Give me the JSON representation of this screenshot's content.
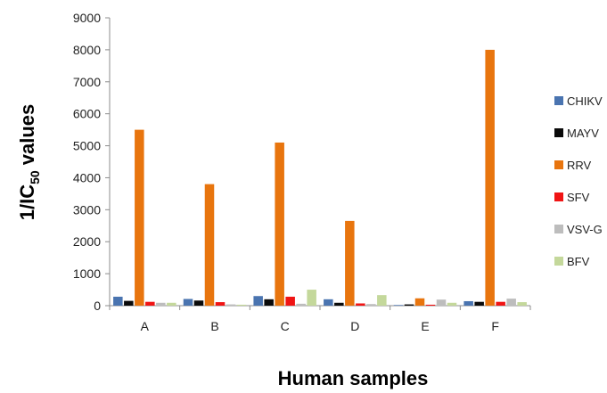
{
  "chart_data": {
    "type": "bar",
    "categories": [
      "A",
      "B",
      "C",
      "D",
      "E",
      "F"
    ],
    "series": [
      {
        "name": "CHIKV",
        "color": "#4a74b0",
        "values": [
          280,
          210,
          300,
          200,
          20,
          140
        ]
      },
      {
        "name": "MAYV",
        "color": "#0a0a0a",
        "values": [
          150,
          160,
          200,
          90,
          40,
          120
        ]
      },
      {
        "name": "RRV",
        "color": "#e8750e",
        "values": [
          5500,
          3800,
          5100,
          2650,
          230,
          8000
        ]
      },
      {
        "name": "SFV",
        "color": "#f01414",
        "values": [
          120,
          110,
          280,
          70,
          30,
          120
        ]
      },
      {
        "name": "VSV-G",
        "color": "#bdbdbd",
        "values": [
          90,
          40,
          60,
          50,
          190,
          220
        ]
      },
      {
        "name": "BFV",
        "color": "#c4d89b",
        "values": [
          90,
          30,
          500,
          330,
          90,
          110
        ]
      }
    ],
    "ylim": [
      0,
      9000
    ],
    "yticks": [
      "0",
      "1000",
      "2000",
      "3000",
      "4000",
      "5000",
      "6000",
      "7000",
      "8000",
      "9000"
    ],
    "xlabel": "Human samples",
    "ylabel_main": "1/IC",
    "ylabel_sub": "50",
    "ylabel_tail": " values",
    "legend_position": "right",
    "grid": false
  }
}
